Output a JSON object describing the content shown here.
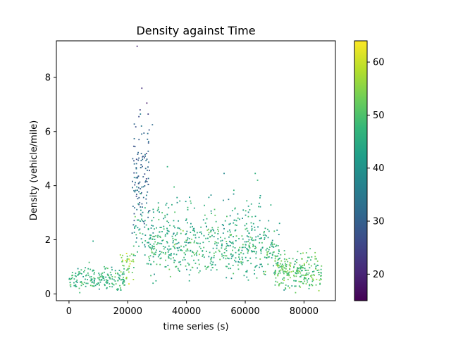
{
  "chart_data": {
    "type": "scatter",
    "title": "Density against Time",
    "xlabel": "time series (s)",
    "ylabel": "Density (vehicle/mile)",
    "xlim": [
      -4300,
      90700
    ],
    "ylim": [
      -0.25,
      9.35
    ],
    "xticks": [
      0,
      20000,
      40000,
      60000,
      80000
    ],
    "yticks": [
      0,
      2,
      4,
      6,
      8
    ],
    "grid": false,
    "colormap": "viridis",
    "colorbar": {
      "range": [
        15,
        64
      ],
      "ticks": [
        20,
        30,
        40,
        50,
        60
      ]
    },
    "clusters": [
      {
        "x_range": [
          0,
          19000
        ],
        "y_mean": 0.55,
        "y_spread": 0.35,
        "c_mean": 47,
        "c_spread": 5,
        "count": 190
      },
      {
        "x_range": [
          17000,
          22000
        ],
        "y_mean": 1.1,
        "y_spread": 0.6,
        "c_mean": 55,
        "c_spread": 6,
        "count": 40
      },
      {
        "x_range": [
          21500,
          27500
        ],
        "y_mean": 4.4,
        "y_spread": 1.6,
        "c_mean": 31,
        "c_spread": 6,
        "count": 110
      },
      {
        "x_range": [
          22000,
          29000
        ],
        "y_mean": 2.3,
        "y_spread": 0.9,
        "c_mean": 45,
        "c_spread": 7,
        "count": 60
      },
      {
        "x_range": [
          27000,
          72000
        ],
        "y_mean": 1.7,
        "y_spread": 0.85,
        "c_mean": 46,
        "c_spread": 6,
        "count": 560
      },
      {
        "x_range": [
          30000,
          70000
        ],
        "y_mean": 3.0,
        "y_spread": 0.7,
        "c_mean": 44,
        "c_spread": 6,
        "count": 90
      },
      {
        "x_range": [
          70000,
          86000
        ],
        "y_mean": 0.8,
        "y_spread": 0.5,
        "c_mean": 50,
        "c_spread": 6,
        "count": 250
      }
    ],
    "highlights": [
      {
        "x": 23200,
        "y": 9.15,
        "c": 20
      },
      {
        "x": 24800,
        "y": 7.6,
        "c": 22
      },
      {
        "x": 26500,
        "y": 7.05,
        "c": 18
      },
      {
        "x": 24200,
        "y": 6.8,
        "c": 24
      },
      {
        "x": 23800,
        "y": 6.55,
        "c": 26
      },
      {
        "x": 28400,
        "y": 6.25,
        "c": 32
      },
      {
        "x": 52800,
        "y": 4.45,
        "c": 38
      },
      {
        "x": 63400,
        "y": 4.45,
        "c": 46
      },
      {
        "x": 8200,
        "y": 1.95,
        "c": 44
      },
      {
        "x": 33500,
        "y": 4.7,
        "c": 46
      },
      {
        "x": 64200,
        "y": 4.2,
        "c": 48
      }
    ]
  }
}
